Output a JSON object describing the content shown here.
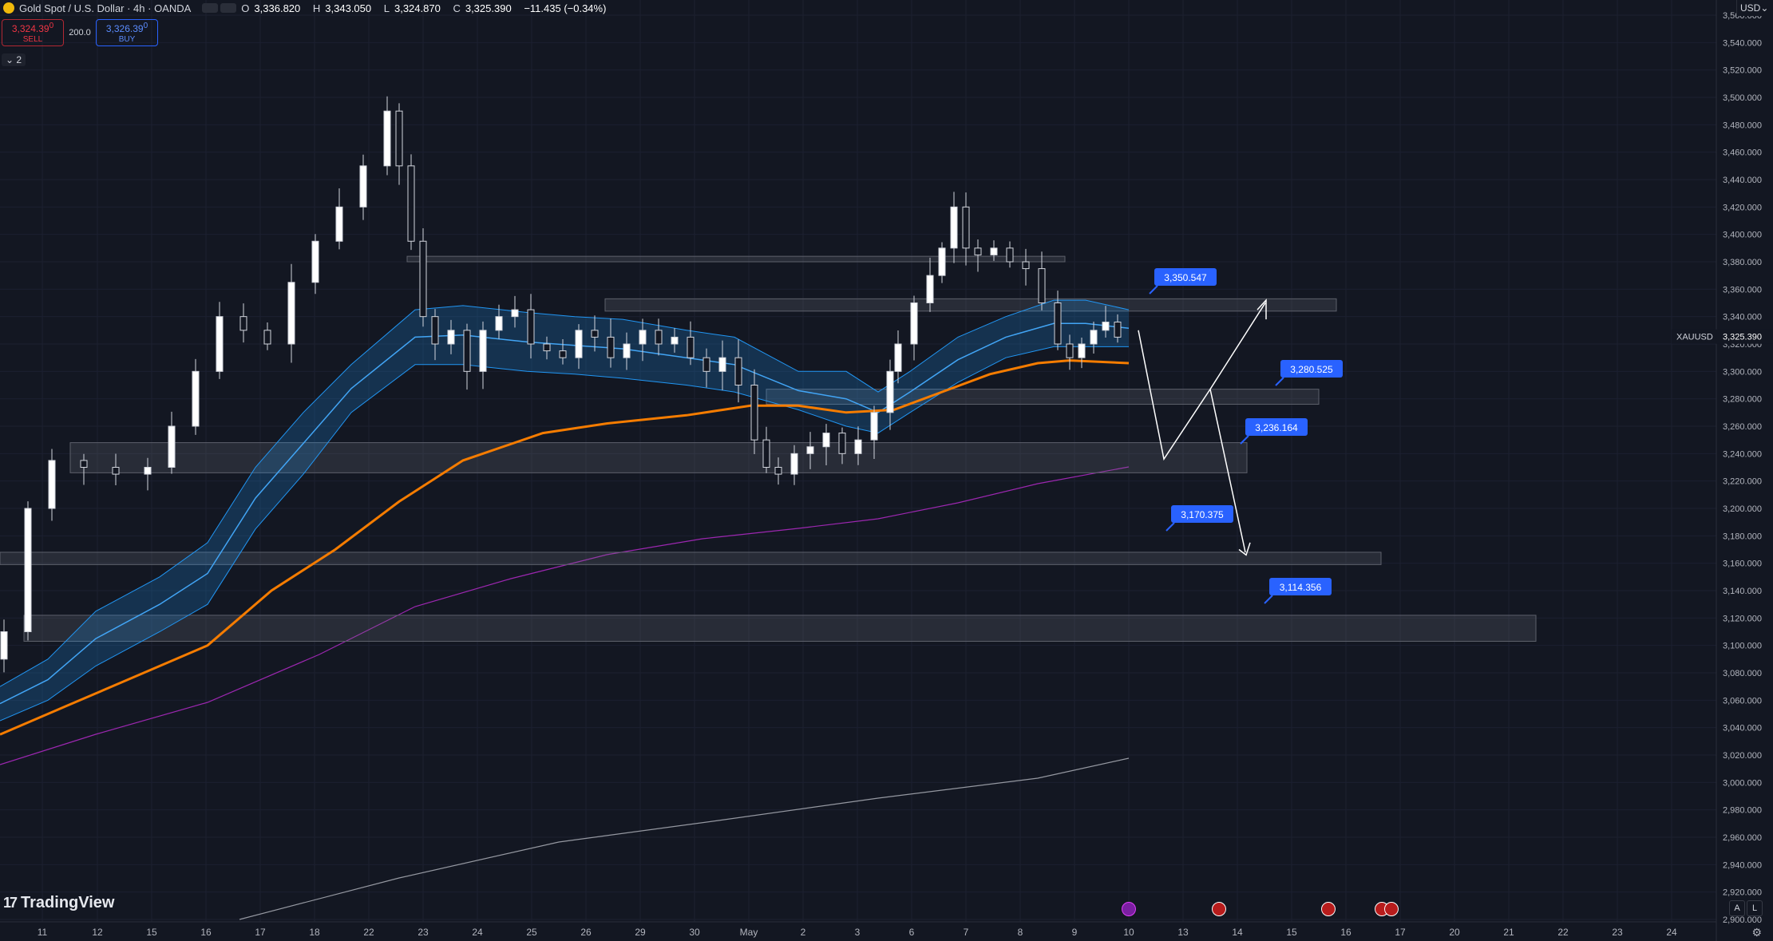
{
  "header": {
    "symbol_title": "Gold Spot / U.S. Dollar · 4h · OANDA",
    "open_label": "O",
    "open": "3,336.820",
    "high_label": "H",
    "high": "3,343.050",
    "low_label": "L",
    "low": "3,324.870",
    "close_label": "C",
    "close": "3,325.390",
    "change": "−11.435 (−0.34%)"
  },
  "trade": {
    "sell_price": "3,324.39",
    "sell_sup": "0",
    "sell_label": "SELL",
    "spread": "200.0",
    "buy_price": "3,326.39",
    "buy_sup": "0",
    "buy_label": "BUY"
  },
  "indicators_collapsed": "2",
  "currency": "USD",
  "brand": "TradingView",
  "price_axis": {
    "ticks": [
      "3,560.000",
      "3,540.000",
      "3,520.000",
      "3,500.000",
      "3,480.000",
      "3,460.000",
      "3,440.000",
      "3,420.000",
      "3,400.000",
      "3,380.000",
      "3,360.000",
      "3,340.000",
      "3,320.000",
      "3,300.000",
      "3,280.000",
      "3,260.000",
      "3,240.000",
      "3,220.000",
      "3,200.000",
      "3,180.000",
      "3,160.000",
      "3,140.000",
      "3,120.000",
      "3,100.000",
      "3,080.000",
      "3,060.000",
      "3,040.000",
      "3,020.000",
      "3,000.000",
      "2,980.000",
      "2,960.000",
      "2,940.000",
      "2,920.000",
      "2,900.000"
    ],
    "current_symbol": "XAUUSD",
    "current_price": "3,325.390"
  },
  "time_axis": {
    "ticks": [
      "11",
      "12",
      "15",
      "16",
      "17",
      "18",
      "22",
      "23",
      "24",
      "25",
      "26",
      "29",
      "30",
      "May",
      "2",
      "3",
      "6",
      "7",
      "8",
      "9",
      "10",
      "13",
      "14",
      "15",
      "16",
      "17",
      "20",
      "21",
      "22",
      "23",
      "24"
    ]
  },
  "levels": [
    {
      "label": "3,350.547",
      "price": 3350.547
    },
    {
      "label": "3,280.525",
      "price": 3280.525
    },
    {
      "label": "3,236.164",
      "price": 3236.164
    },
    {
      "label": "3,170.375",
      "price": 3170.375
    },
    {
      "label": "3,114.356",
      "price": 3114.356
    }
  ],
  "axis_buttons": {
    "auto": "A",
    "log": "L"
  },
  "colors": {
    "background": "#131722",
    "up_candle": "#ffffff",
    "down_candle": "#131722",
    "ema_band": "#2196f3",
    "ema_orange": "#f57c00",
    "ma_purple": "#9c27b0",
    "ma_gray": "#9598a1",
    "level_label": "#2962ff",
    "zone": "#5d606b"
  }
}
